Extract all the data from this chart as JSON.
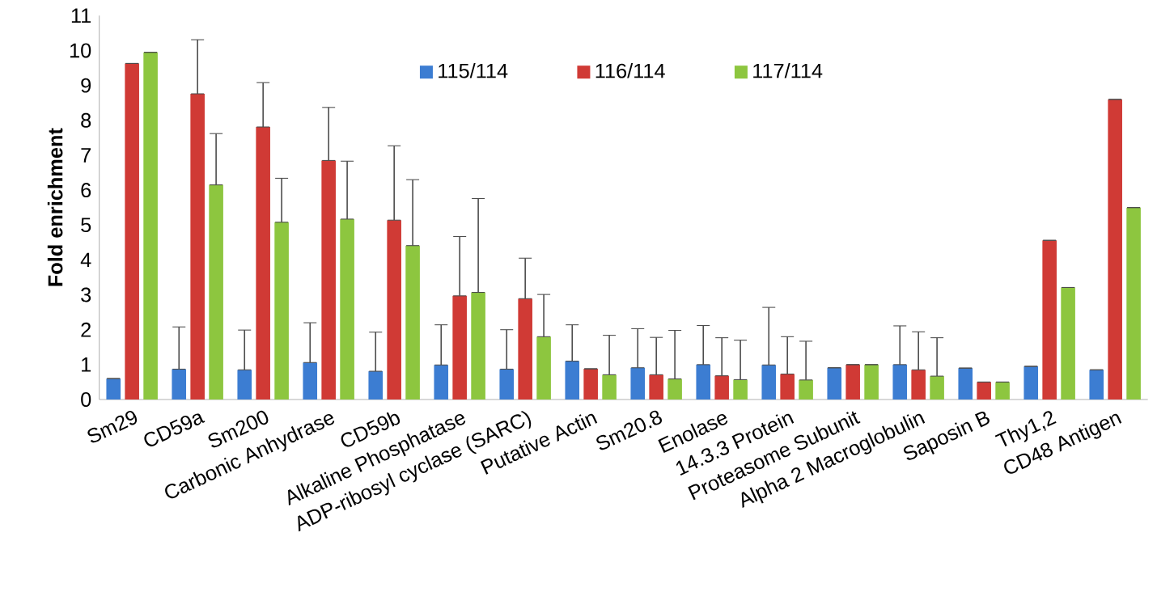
{
  "chart_data": {
    "type": "bar",
    "ylabel": "**Fold enrichment**",
    "categories": [
      "Sm29",
      "CD59a",
      "Sm200",
      "Carbonic Anhydrase",
      "CD59b",
      "Alkaline Phosphatase",
      "ADP-ribosyl cyclase (SARC)",
      "Putative Actin",
      "Sm20.8",
      "Enolase",
      "14.3.3 Protein",
      "Proteasome Subunit",
      "Alpha 2 Macroglobulin",
      "Saposin B",
      "Thy1,2",
      "CD48 Antigen"
    ],
    "series": [
      {
        "name": "115/114",
        "color": "#3c7dd2",
        "values": [
          0.6,
          0.87,
          0.85,
          1.06,
          0.81,
          0.99,
          0.87,
          1.1,
          0.91,
          1.0,
          0.99,
          0.91,
          1.0,
          0.9,
          0.95,
          0.85
        ],
        "errors": [
          null,
          [
            0.87,
            2.08
          ],
          [
            0.85,
            1.99
          ],
          [
            1.06,
            2.2
          ],
          [
            0.81,
            1.93
          ],
          [
            0.99,
            2.14
          ],
          [
            0.87,
            2.0
          ],
          [
            1.1,
            2.14
          ],
          [
            0.91,
            2.03
          ],
          [
            1.0,
            2.12
          ],
          [
            0.99,
            2.64
          ],
          null,
          [
            1.0,
            2.11
          ],
          null,
          null,
          null
        ]
      },
      {
        "name": "116/114",
        "color": "#d03a35",
        "values": [
          9.63,
          8.76,
          7.81,
          6.85,
          5.14,
          2.97,
          2.89,
          0.88,
          0.71,
          0.68,
          0.73,
          1.0,
          0.85,
          0.5,
          4.56,
          8.6
        ],
        "errors": [
          null,
          [
            8.76,
            10.31
          ],
          [
            7.81,
            9.08
          ],
          [
            6.85,
            8.37
          ],
          [
            5.14,
            7.27
          ],
          [
            2.97,
            4.67
          ],
          [
            2.89,
            4.05
          ],
          null,
          [
            0.71,
            1.78
          ],
          [
            0.68,
            1.77
          ],
          [
            0.73,
            1.8
          ],
          null,
          [
            0.85,
            1.94
          ],
          null,
          null,
          null
        ]
      },
      {
        "name": "117/114",
        "color": "#8dc63f",
        "values": [
          9.95,
          6.15,
          5.08,
          5.17,
          4.41,
          3.07,
          1.8,
          0.71,
          0.59,
          0.57,
          0.56,
          1.0,
          0.67,
          0.5,
          3.21,
          5.5
        ],
        "errors": [
          null,
          [
            6.15,
            7.62
          ],
          [
            5.08,
            6.34
          ],
          [
            5.17,
            6.83
          ],
          [
            4.41,
            6.3
          ],
          [
            3.07,
            5.76
          ],
          [
            1.8,
            3.01
          ],
          [
            0.71,
            1.84
          ],
          [
            0.59,
            1.98
          ],
          [
            0.57,
            1.7
          ],
          [
            0.56,
            1.67
          ],
          null,
          [
            0.67,
            1.77
          ],
          null,
          null,
          null
        ]
      }
    ],
    "ylim": [
      0,
      11
    ],
    "yticks": [
      0,
      1,
      2,
      3,
      4,
      5,
      6,
      7,
      8,
      9,
      10,
      11
    ],
    "legend": "top",
    "grid": false
  }
}
